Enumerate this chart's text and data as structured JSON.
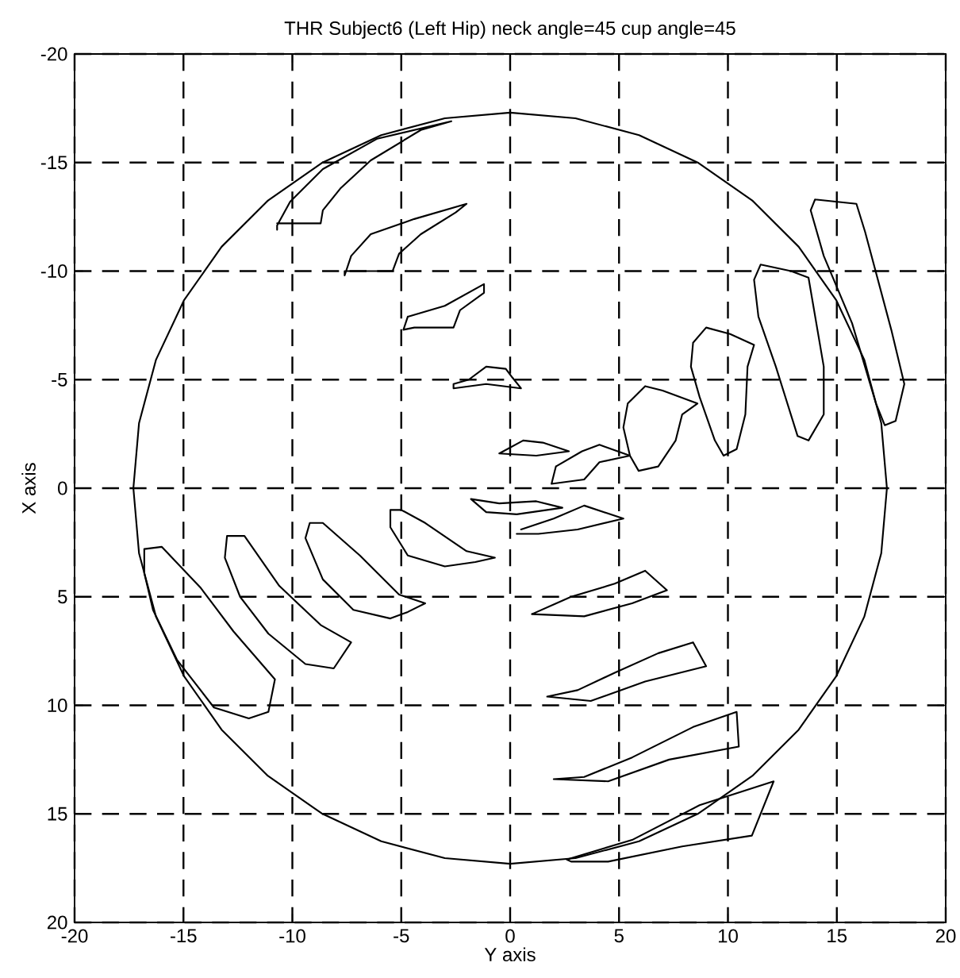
{
  "chart_data": {
    "type": "line",
    "title": "THR Subject6 (Left Hip) neck angle=45  cup angle=45",
    "xlabel": "Y axis",
    "ylabel": "X axis",
    "xlim": [
      -20,
      20
    ],
    "ylim": [
      20,
      -20
    ],
    "xticks": [
      -20,
      -15,
      -10,
      -5,
      0,
      5,
      10,
      15,
      20
    ],
    "yticks": [
      -20,
      -15,
      -10,
      -5,
      0,
      5,
      10,
      15,
      20
    ],
    "grid": true,
    "line_style": "solid",
    "series": [
      {
        "color": "#000000",
        "x": [
          17.3,
          17.04,
          16.26,
          14.98,
          13.25,
          11.12,
          8.65,
          5.92,
          3.0,
          0,
          -3.0,
          -5.92,
          -8.65,
          -11.12,
          -13.25,
          -14.98,
          -16.26,
          -17.04,
          -17.3,
          -17.04,
          -16.26,
          -14.98,
          -13.25,
          -11.12,
          -8.65,
          -5.92,
          -3.0,
          0,
          3.0,
          5.92,
          8.65,
          11.12,
          13.25,
          14.98,
          16.26,
          17.04,
          17.3,
          17.04
        ],
        "values": [
          0,
          3.0,
          5.92,
          8.65,
          11.12,
          13.25,
          14.98,
          16.26,
          17.04,
          17.3,
          17.04,
          16.26,
          14.98,
          13.25,
          11.12,
          8.65,
          5.92,
          3.0,
          0,
          -3.0,
          -5.92,
          -8.65,
          -11.12,
          -13.25,
          -14.98,
          -16.26,
          -17.04,
          -17.3,
          -17.04,
          -16.26,
          -14.98,
          -13.25,
          -11.12,
          -8.65,
          -5.92,
          -3.0,
          0,
          3.0
        ]
      },
      {
        "color": "#000000",
        "x": [
          -10.7,
          -10.7,
          -10.1,
          -8.6,
          -6.1,
          -2.7,
          -4.1,
          -6.4,
          -7.8,
          -8.6,
          -8.7,
          -10.7
        ],
        "values": [
          -11.9,
          -12.1,
          -13.2,
          -14.7,
          -16.1,
          -16.9,
          -16.5,
          -15.1,
          -13.8,
          -12.8,
          -12.2,
          -12.2
        ]
      },
      {
        "color": "#000000",
        "x": [
          -7.6,
          -7.3,
          -6.4,
          -4.4,
          -2.0,
          -2.5,
          -4.1,
          -5.1,
          -5.4,
          -7.6,
          -7.6,
          -7.3
        ],
        "values": [
          -9.8,
          -10.7,
          -11.7,
          -12.4,
          -13.1,
          -12.7,
          -11.7,
          -10.8,
          -10.0,
          -10.0,
          -9.8,
          -10.7
        ]
      },
      {
        "color": "#000000",
        "x": [
          -4.9,
          -4.7,
          -3.0,
          -1.2,
          -1.2,
          -2.3,
          -2.6,
          -4.4,
          -4.9,
          -4.7
        ],
        "values": [
          -7.3,
          -7.9,
          -8.4,
          -9.4,
          -9.0,
          -8.2,
          -7.4,
          -7.4,
          -7.3,
          -7.9
        ]
      },
      {
        "color": "#000000",
        "x": [
          -2.6,
          -1.9,
          -1.1,
          -0.2,
          0.1,
          0.5,
          -1.1,
          -2.6,
          -2.6,
          -1.9
        ],
        "values": [
          -4.8,
          -5.0,
          -5.6,
          -5.5,
          -5.1,
          -4.6,
          -4.8,
          -4.6,
          -4.8,
          -5.0
        ]
      },
      {
        "color": "#000000",
        "x": [
          -0.5,
          0.6,
          1.5,
          2.7,
          1.2,
          -0.5,
          0.6
        ],
        "values": [
          -1.6,
          -2.2,
          -2.1,
          -1.7,
          -1.5,
          -1.6,
          -2.2
        ]
      },
      {
        "color": "#000000",
        "x": [
          1.9,
          2.1,
          3.3,
          4.1,
          5.5,
          4.1,
          3.4,
          1.9,
          2.1
        ],
        "values": [
          -0.2,
          -1.0,
          -1.7,
          -2.0,
          -1.5,
          -1.2,
          -0.4,
          -0.2,
          -1.0
        ]
      },
      {
        "color": "#000000",
        "x": [
          6.2,
          5.4,
          5.2,
          5.5,
          5.9,
          6.8,
          7.6,
          7.9,
          8.6,
          7.0,
          6.2,
          5.4
        ],
        "values": [
          -4.7,
          -3.9,
          -2.8,
          -1.5,
          -0.8,
          -1.0,
          -2.2,
          -3.4,
          -3.9,
          -4.5,
          -4.7,
          -3.9
        ]
      },
      {
        "color": "#000000",
        "x": [
          9.0,
          8.4,
          8.3,
          8.7,
          9.4,
          9.8,
          10.4,
          10.8,
          10.9,
          11.2,
          10.1,
          9.0,
          8.4
        ],
        "values": [
          -7.4,
          -6.7,
          -5.6,
          -4.2,
          -2.2,
          -1.5,
          -1.8,
          -3.4,
          -5.6,
          -6.6,
          -7.1,
          -7.4,
          -6.7
        ]
      },
      {
        "color": "#000000",
        "x": [
          11.5,
          11.2,
          11.4,
          12.2,
          13.2,
          13.7,
          14.4,
          14.4,
          13.7,
          12.9,
          11.5,
          11.2
        ],
        "values": [
          -10.3,
          -9.6,
          -7.9,
          -5.6,
          -2.4,
          -2.2,
          -3.4,
          -5.6,
          -9.7,
          -10.0,
          -10.3,
          -9.6
        ]
      },
      {
        "color": "#000000",
        "x": [
          14.0,
          13.8,
          14.4,
          15.7,
          16.8,
          17.2,
          17.7,
          18.1,
          17.5,
          16.3,
          15.9,
          14.0,
          13.8
        ],
        "values": [
          -13.3,
          -12.8,
          -10.7,
          -7.6,
          -3.9,
          -2.9,
          -3.1,
          -4.8,
          -7.3,
          -11.8,
          -13.1,
          -13.3,
          -12.8
        ]
      },
      {
        "color": "#000000",
        "x": [
          -16.8,
          -16.8,
          -16.4,
          -15.3,
          -13.6,
          -12.0,
          -11.1,
          -10.8,
          -12.7,
          -14.2,
          -16.0,
          -16.8,
          -16.8
        ],
        "values": [
          2.8,
          3.9,
          5.6,
          7.9,
          10.1,
          10.6,
          10.3,
          8.8,
          6.6,
          4.6,
          2.7,
          2.8,
          3.9
        ]
      },
      {
        "color": "#000000",
        "x": [
          -13.0,
          -13.1,
          -12.4,
          -11.1,
          -9.4,
          -8.1,
          -7.3,
          -8.7,
          -10.6,
          -12.2,
          -13.0,
          -13.1
        ],
        "values": [
          2.2,
          3.2,
          5.0,
          6.7,
          8.1,
          8.3,
          7.1,
          6.3,
          4.5,
          2.2,
          2.2,
          3.2
        ]
      },
      {
        "color": "#000000",
        "x": [
          -9.2,
          -9.4,
          -8.6,
          -7.2,
          -5.5,
          -4.7,
          -3.9,
          -5.1,
          -6.9,
          -8.6,
          -9.2,
          -9.4
        ],
        "values": [
          1.6,
          2.3,
          4.2,
          5.6,
          6.0,
          5.7,
          5.3,
          4.9,
          3.1,
          1.6,
          1.6,
          2.3
        ]
      },
      {
        "color": "#000000",
        "x": [
          -5.5,
          -5.5,
          -4.7,
          -3.0,
          -1.6,
          -0.7,
          -2.0,
          -3.9,
          -5.0,
          -5.5,
          -5.5
        ],
        "values": [
          1.0,
          1.8,
          3.1,
          3.6,
          3.4,
          3.2,
          2.9,
          1.6,
          1.0,
          1.0,
          1.8
        ]
      },
      {
        "color": "#000000",
        "x": [
          -1.8,
          -1.1,
          0.3,
          2.4,
          1.2,
          -0.5,
          -1.8,
          -1.1
        ],
        "values": [
          0.5,
          1.1,
          1.2,
          0.9,
          0.6,
          0.7,
          0.5,
          1.1
        ]
      },
      {
        "color": "#000000",
        "x": [
          0.3,
          1.3,
          3.1,
          5.2,
          3.4,
          2.0,
          0.5
        ],
        "values": [
          2.1,
          2.1,
          1.9,
          1.4,
          0.8,
          1.4,
          1.9
        ]
      },
      {
        "color": "#000000",
        "x": [
          1.0,
          3.4,
          5.6,
          7.2,
          6.2,
          4.8,
          2.8,
          1.0,
          3.4
        ],
        "values": [
          5.8,
          5.9,
          5.3,
          4.7,
          3.8,
          4.4,
          5.0,
          5.8,
          5.9
        ]
      },
      {
        "color": "#000000",
        "x": [
          1.7,
          3.7,
          6.2,
          9.0,
          8.4,
          6.8,
          4.8,
          3.1,
          1.7,
          3.7
        ],
        "values": [
          9.6,
          9.8,
          8.9,
          8.2,
          7.1,
          7.6,
          8.5,
          9.3,
          9.6,
          9.8
        ]
      },
      {
        "color": "#000000",
        "x": [
          2.0,
          4.5,
          7.3,
          10.5,
          10.4,
          8.4,
          5.6,
          3.4,
          2.0,
          4.5
        ],
        "values": [
          13.4,
          13.5,
          12.5,
          11.9,
          10.3,
          11.0,
          12.4,
          13.3,
          13.4,
          13.5
        ]
      },
      {
        "color": "#000000",
        "x": [
          2.6,
          5.6,
          8.7,
          12.1,
          11.1,
          7.9,
          4.5,
          2.8,
          2.6,
          5.6
        ],
        "values": [
          17.1,
          16.2,
          14.6,
          13.5,
          16.0,
          16.5,
          17.2,
          17.2,
          17.1,
          16.2
        ]
      }
    ]
  }
}
